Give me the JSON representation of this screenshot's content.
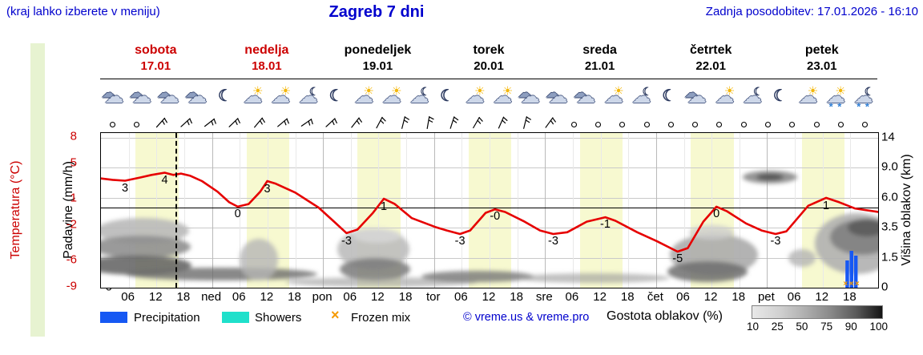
{
  "header": {
    "hint": "(kraj lahko izberete v meniju)",
    "title": "Zagreb 7 dni",
    "updated": "Zadnja posodobitev: 17.01.2026 - 16:10"
  },
  "days": [
    {
      "name": "sobota",
      "date": "17.01",
      "highlight": true
    },
    {
      "name": "nedelja",
      "date": "18.01",
      "highlight": true
    },
    {
      "name": "ponedeljek",
      "date": "19.01",
      "highlight": false
    },
    {
      "name": "torek",
      "date": "20.01",
      "highlight": false
    },
    {
      "name": "sreda",
      "date": "21.01",
      "highlight": false
    },
    {
      "name": "četrtek",
      "date": "22.01",
      "highlight": false
    },
    {
      "name": "petek",
      "date": "23.01",
      "highlight": false
    }
  ],
  "axes": {
    "temp_title": "Temperatura (°C)",
    "precip_title": "Padavine (mm/h)",
    "cloud_title": "Višina oblakov (km)",
    "temp_ticks": [
      {
        "t": "8",
        "y": 5
      },
      {
        "t": "5",
        "y": 38
      },
      {
        "t": "1",
        "y": 82
      },
      {
        "t": "-2",
        "y": 115
      },
      {
        "t": "-6",
        "y": 159
      },
      {
        "t": "-9",
        "y": 192
      }
    ],
    "precip_ticks": [
      {
        "t": "5",
        "y": 5.5
      },
      {
        "t": "4",
        "y": 43
      },
      {
        "t": "3",
        "y": 80.5
      },
      {
        "t": "2",
        "y": 118
      },
      {
        "t": "1",
        "y": 155.5
      },
      {
        "t": "0",
        "y": 193
      }
    ],
    "cloud_ticks": [
      {
        "t": "14",
        "y": 5.5
      },
      {
        "t": "9.0",
        "y": 43
      },
      {
        "t": "6.0",
        "y": 80.5
      },
      {
        "t": "3.5",
        "y": 118
      },
      {
        "t": "1.5",
        "y": 155.5
      },
      {
        "t": "0",
        "y": 193
      }
    ],
    "x_ticks": [
      {
        "t": "06",
        "f": 0.0357
      },
      {
        "t": "12",
        "f": 0.0714
      },
      {
        "t": "18",
        "f": 0.1071
      },
      {
        "t": "ned",
        "f": 0.1429
      },
      {
        "t": "06",
        "f": 0.1786
      },
      {
        "t": "12",
        "f": 0.2143
      },
      {
        "t": "18",
        "f": 0.25
      },
      {
        "t": "pon",
        "f": 0.2857
      },
      {
        "t": "06",
        "f": 0.3214
      },
      {
        "t": "12",
        "f": 0.3571
      },
      {
        "t": "18",
        "f": 0.3929
      },
      {
        "t": "tor",
        "f": 0.4286
      },
      {
        "t": "06",
        "f": 0.4643
      },
      {
        "t": "12",
        "f": 0.5
      },
      {
        "t": "18",
        "f": 0.5357
      },
      {
        "t": "sre",
        "f": 0.5714
      },
      {
        "t": "06",
        "f": 0.6071
      },
      {
        "t": "12",
        "f": 0.6429
      },
      {
        "t": "18",
        "f": 0.6786
      },
      {
        "t": "čet",
        "f": 0.7143
      },
      {
        "t": "06",
        "f": 0.75
      },
      {
        "t": "12",
        "f": 0.7857
      },
      {
        "t": "18",
        "f": 0.8214
      },
      {
        "t": "pet",
        "f": 0.8571
      },
      {
        "t": "06",
        "f": 0.8929
      },
      {
        "t": "12",
        "f": 0.9286
      },
      {
        "t": "18",
        "f": 0.9643
      }
    ]
  },
  "icons": {
    "sequence": [
      "cloud",
      "cloud",
      "cloud",
      "cloud",
      "moon",
      "suncloud",
      "suncloud",
      "cloudmoon",
      "moon",
      "suncloud",
      "suncloud",
      "cloudmoon",
      "moon",
      "suncloud",
      "suncloud",
      "cloud",
      "cloud",
      "cloud",
      "suncloud",
      "cloudmoon",
      "moon",
      "cloud",
      "suncloud",
      "cloudmoon",
      "moon",
      "suncloud",
      "snowcloud",
      "moonsnowcloud"
    ]
  },
  "wind": {
    "sequence": [
      {
        "type": "calm"
      },
      {
        "type": "calm"
      },
      {
        "type": "barb",
        "rot": 42
      },
      {
        "type": "barb",
        "rot": 48
      },
      {
        "type": "barb",
        "rot": 52
      },
      {
        "type": "barb",
        "rot": 46
      },
      {
        "type": "barb",
        "rot": 40
      },
      {
        "type": "barb",
        "rot": 50
      },
      {
        "type": "barb",
        "rot": 55
      },
      {
        "type": "barb",
        "rot": 47
      },
      {
        "type": "barb",
        "rot": 38
      },
      {
        "type": "barb",
        "rot": 28
      },
      {
        "type": "barb",
        "rot": 14
      },
      {
        "type": "barb",
        "rot": 10
      },
      {
        "type": "barb",
        "rot": 18
      },
      {
        "type": "barb",
        "rot": 30
      },
      {
        "type": "barb",
        "rot": 24
      },
      {
        "type": "barb",
        "rot": 14
      },
      {
        "type": "barb",
        "rot": 36
      },
      {
        "type": "calm"
      },
      {
        "type": "calm"
      },
      {
        "type": "calm"
      },
      {
        "type": "calm"
      },
      {
        "type": "calm"
      },
      {
        "type": "calm"
      },
      {
        "type": "calm"
      },
      {
        "type": "calm"
      },
      {
        "type": "calm"
      },
      {
        "type": "calm"
      },
      {
        "type": "calm"
      },
      {
        "type": "calm"
      },
      {
        "type": "calm"
      }
    ]
  },
  "chart_data": {
    "type": "line",
    "title": "Zagreb 7 dni",
    "x_range_days": 7,
    "precip_axis_range": [
      0,
      5
    ],
    "temp_axis_range": [
      -9,
      8
    ],
    "cloud_height_ticks_km": [
      0,
      1.5,
      3.5,
      6.0,
      9.0,
      14
    ],
    "freezing_line_c": 0,
    "now_frac": 0.096,
    "day_band": {
      "start_hour": 7.5,
      "end_hour": 16.75
    },
    "temperature_series": {
      "name": "Temperatura (°C)",
      "color": "#e60000",
      "points": [
        [
          0.0,
          3.3
        ],
        [
          0.015,
          3.15
        ],
        [
          0.031,
          3.05
        ],
        [
          0.05,
          3.4
        ],
        [
          0.065,
          3.7
        ],
        [
          0.082,
          3.95
        ],
        [
          0.093,
          3.7
        ],
        [
          0.103,
          3.85
        ],
        [
          0.115,
          3.6
        ],
        [
          0.13,
          3.0
        ],
        [
          0.15,
          1.8
        ],
        [
          0.165,
          0.6
        ],
        [
          0.176,
          0.1
        ],
        [
          0.19,
          0.4
        ],
        [
          0.205,
          1.8
        ],
        [
          0.214,
          3.0
        ],
        [
          0.225,
          2.7
        ],
        [
          0.25,
          1.7
        ],
        [
          0.28,
          0.0
        ],
        [
          0.3,
          -1.6
        ],
        [
          0.316,
          -2.9
        ],
        [
          0.33,
          -2.5
        ],
        [
          0.35,
          -0.6
        ],
        [
          0.364,
          1.0
        ],
        [
          0.378,
          0.4
        ],
        [
          0.4,
          -1.2
        ],
        [
          0.43,
          -2.2
        ],
        [
          0.445,
          -2.6
        ],
        [
          0.462,
          -3.0
        ],
        [
          0.475,
          -2.6
        ],
        [
          0.495,
          -0.6
        ],
        [
          0.507,
          -0.2
        ],
        [
          0.52,
          -0.5
        ],
        [
          0.545,
          -1.6
        ],
        [
          0.565,
          -2.6
        ],
        [
          0.582,
          -3.0
        ],
        [
          0.6,
          -2.8
        ],
        [
          0.625,
          -1.6
        ],
        [
          0.649,
          -1.1
        ],
        [
          0.662,
          -1.5
        ],
        [
          0.69,
          -2.8
        ],
        [
          0.715,
          -3.8
        ],
        [
          0.742,
          -5.0
        ],
        [
          0.755,
          -4.6
        ],
        [
          0.775,
          -1.6
        ],
        [
          0.792,
          0.1
        ],
        [
          0.805,
          -0.4
        ],
        [
          0.83,
          -1.8
        ],
        [
          0.85,
          -2.6
        ],
        [
          0.868,
          -3.0
        ],
        [
          0.882,
          -2.7
        ],
        [
          0.91,
          0.2
        ],
        [
          0.933,
          1.1
        ],
        [
          0.95,
          0.6
        ],
        [
          0.97,
          -0.1
        ],
        [
          1.0,
          -0.5
        ]
      ]
    },
    "temp_point_labels": [
      {
        "f": 0.031,
        "y": 73,
        "t": "3"
      },
      {
        "f": 0.082,
        "y": 63,
        "t": "4"
      },
      {
        "f": 0.176,
        "y": 105,
        "t": "0"
      },
      {
        "f": 0.214,
        "y": 74,
        "t": "3"
      },
      {
        "f": 0.316,
        "y": 139,
        "t": "-3"
      },
      {
        "f": 0.364,
        "y": 96,
        "t": "1"
      },
      {
        "f": 0.462,
        "y": 139,
        "t": "-3"
      },
      {
        "f": 0.507,
        "y": 108,
        "t": "-0"
      },
      {
        "f": 0.582,
        "y": 139,
        "t": "-3"
      },
      {
        "f": 0.649,
        "y": 118,
        "t": "-1"
      },
      {
        "f": 0.742,
        "y": 161,
        "t": "-5"
      },
      {
        "f": 0.792,
        "y": 105,
        "t": "0"
      },
      {
        "f": 0.868,
        "y": 139,
        "t": "-3"
      },
      {
        "f": 0.933,
        "y": 95,
        "t": "1"
      }
    ],
    "clouds": [
      [
        52,
        122,
        58,
        16,
        "#b9b9b9",
        0.9
      ],
      [
        50,
        142,
        62,
        14,
        "#8f8f8f",
        0.9
      ],
      [
        45,
        165,
        68,
        12,
        "#5f5f5f",
        0.85
      ],
      [
        150,
        176,
        120,
        8,
        "#6b6b6b",
        0.8
      ],
      [
        197,
        158,
        24,
        26,
        "#b5b5b5",
        0.8
      ],
      [
        340,
        145,
        45,
        26,
        "#bdbdbd",
        0.9
      ],
      [
        342,
        170,
        44,
        14,
        "#7a7a7a",
        0.85
      ],
      [
        345,
        128,
        30,
        9,
        "#d8d8d8",
        0.8
      ],
      [
        350,
        186,
        120,
        6,
        "#9a9a9a",
        0.6
      ],
      [
        470,
        179,
        70,
        7,
        "#757575",
        0.8
      ],
      [
        615,
        181,
        95,
        6,
        "#979797",
        0.6
      ],
      [
        765,
        152,
        55,
        26,
        "#ababab",
        0.9
      ],
      [
        757,
        173,
        50,
        13,
        "#6e6e6e",
        0.85
      ],
      [
        762,
        124,
        28,
        9,
        "#cccccc",
        0.8
      ],
      [
        835,
        55,
        34,
        8,
        "#8a8a8a",
        0.9
      ],
      [
        835,
        55,
        17,
        4,
        "#4f4f4f",
        0.9
      ],
      [
        875,
        156,
        17,
        11,
        "#b3b3b3",
        0.8
      ],
      [
        943,
        138,
        52,
        38,
        "#b0b0b0",
        0.9
      ],
      [
        950,
        130,
        40,
        22,
        "#7d7d7d",
        0.85
      ],
      [
        956,
        118,
        24,
        11,
        "#585858",
        0.85
      ]
    ],
    "precip_bars": [
      {
        "f": 0.96,
        "h": 34
      },
      {
        "f": 0.9655,
        "h": 46
      },
      {
        "f": 0.971,
        "h": 40
      }
    ],
    "frozen_marks": [
      0.958,
      0.9655,
      0.973
    ]
  },
  "legend": {
    "precipitation": "Precipitation",
    "showers": "Showers",
    "frozen": "Frozen mix",
    "frozen_symbol": "×",
    "copyright": "© vreme.us & vreme.pro",
    "cloud_density": "Gostota oblakov (%)",
    "scale_labels": [
      "10",
      "25",
      "50",
      "75",
      "90",
      "100"
    ],
    "colors": {
      "precip": "#1658f3",
      "showers": "#1fe0cb",
      "frozen": "#f59a00"
    }
  }
}
